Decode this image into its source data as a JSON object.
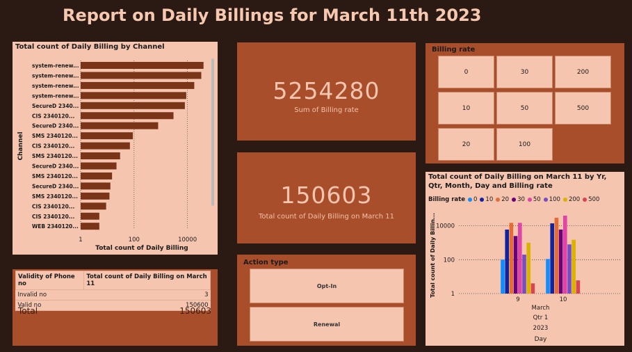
{
  "title": "Report on Daily Billings for March 11th 2023",
  "channel_chart": {
    "title": "Total count of Daily Billing by Channel",
    "chart_data": {
      "type": "bar",
      "orientation": "horizontal",
      "xscale": "log",
      "xlim": [
        1,
        100000
      ],
      "title": "Total count of Daily Billing by Channel",
      "xlabel": "Total count of Daily Billing",
      "ylabel": "Channel",
      "xticks": [
        "1",
        "100",
        "10000"
      ],
      "categories": [
        "system-renew...",
        "system-renew...",
        "system-renew...",
        "system-renew...",
        "SecureD 2340...",
        "CIS 2340120...",
        "SecureD 2340...",
        "SMS 2340120...",
        "CIS 2340120...",
        "SMS 2340120...",
        "SecureD 2340...",
        "SMS 2340120...",
        "SecureD 2340...",
        "SMS 2340120...",
        "CIS 2340120...",
        "CIS 2340120...",
        "WEB 2340120..."
      ],
      "values": [
        40000,
        33000,
        18000,
        9000,
        8000,
        3000,
        800,
        90,
        70,
        30,
        22,
        15,
        13,
        12,
        9,
        5,
        5
      ]
    }
  },
  "kpi_billing_rate": {
    "value": "5254280",
    "label": "Sum of Billing rate"
  },
  "kpi_count": {
    "value": "150603",
    "label": "Total count of Daily Billing on March 11"
  },
  "billing_rate_slicer": {
    "title": "Billing rate",
    "options": [
      "0",
      "30",
      "200",
      "10",
      "50",
      "500",
      "20",
      "100"
    ]
  },
  "action_type": {
    "title": "Action type",
    "options": [
      "Opt-In",
      "Renewal"
    ]
  },
  "validity_table": {
    "headers": [
      "Validity of Phone no",
      "Total count of Daily Billing on March 11"
    ],
    "rows": [
      {
        "label": "Invalid no",
        "value": "3"
      },
      {
        "label": "Valid no",
        "value": "150600"
      }
    ],
    "total_label": "Total",
    "total_value": "150603"
  },
  "column_chart": {
    "title": "Total count of Daily Billing on March 11 by Yr, Qtr, Month, Day and Billing rate",
    "legend_title": "Billing rate",
    "chart_data": {
      "type": "bar",
      "yscale": "log",
      "ylim": [
        1,
        30000
      ],
      "ylabel": "Total count of Daily Billin...",
      "yticks": [
        "1",
        "100",
        "10000"
      ],
      "categories": [
        "9",
        "10"
      ],
      "x_hierarchy": [
        "March",
        "Qtr 1",
        "2023"
      ],
      "xlabel": "Day",
      "series": [
        {
          "name": "0",
          "color": "#118dff",
          "values": [
            100,
            110
          ]
        },
        {
          "name": "10",
          "color": "#12239e",
          "values": [
            6000,
            14000
          ]
        },
        {
          "name": "20",
          "color": "#e66c37",
          "values": [
            15000,
            30000
          ]
        },
        {
          "name": "30",
          "color": "#6b007b",
          "values": [
            2500,
            6000
          ]
        },
        {
          "name": "50",
          "color": "#e044a7",
          "values": [
            15000,
            40000
          ]
        },
        {
          "name": "100",
          "color": "#744ec2",
          "values": [
            200,
            800
          ]
        },
        {
          "name": "200",
          "color": "#d9b300",
          "values": [
            1000,
            1500
          ]
        },
        {
          "name": "500",
          "color": "#d64550",
          "values": [
            4,
            6
          ]
        }
      ]
    }
  }
}
